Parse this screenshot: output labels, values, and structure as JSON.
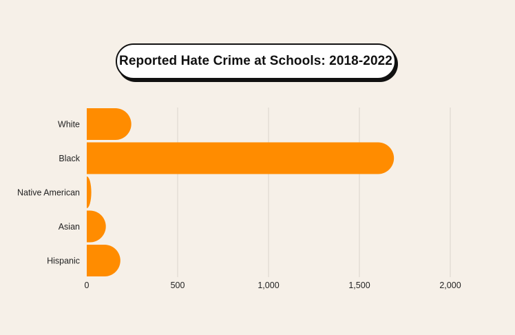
{
  "chart_data": {
    "type": "bar",
    "orientation": "horizontal",
    "title": "Reported Hate Crime at Schools: 2018-2022",
    "xlabel": "",
    "ylabel": "",
    "categories": [
      "White",
      "Black",
      "Native American",
      "Asian",
      "Hispanic"
    ],
    "values": [
      245,
      1690,
      25,
      105,
      185
    ],
    "xlim": [
      0,
      2000
    ],
    "xticks": [
      0,
      500,
      1000,
      1500,
      2000
    ],
    "xtick_labels": [
      "0",
      "500",
      "1,000",
      "1,500",
      "2,000"
    ],
    "grid": "vertical",
    "legend": "none",
    "bar_color": "#ff8c00",
    "grid_color": "#d9d3cb",
    "background_color": "#f6f0e8"
  }
}
